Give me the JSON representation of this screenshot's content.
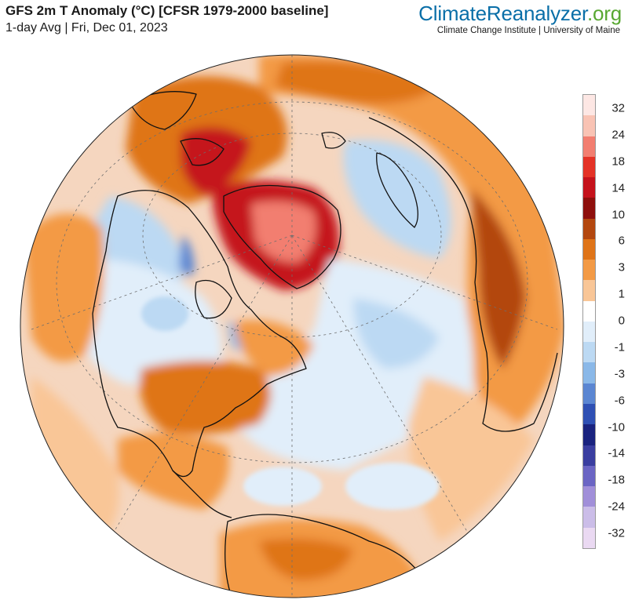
{
  "header": {
    "title": "GFS 2m T Anomaly (°C) [CFSR 1979-2000 baseline]",
    "subtitle": "1-day Avg | Fri, Dec 01, 2023"
  },
  "brand": {
    "name_main": "ClimateReanalyzer",
    "name_tld": ".org",
    "affiliation": "Climate Change Institute | University of Maine"
  },
  "legend": {
    "units": "°C",
    "ticks": [
      "32",
      "24",
      "18",
      "14",
      "10",
      "6",
      "3",
      "1",
      "0",
      "-1",
      "-3",
      "-6",
      "-10",
      "-14",
      "-18",
      "-24",
      "-32"
    ],
    "colors": [
      "#fde7e4",
      "#f9c3b4",
      "#f27e70",
      "#e43226",
      "#c5121b",
      "#8e0f0c",
      "#b3470f",
      "#df7418",
      "#f39a45",
      "#f9c697",
      "#ffffff",
      "#e1eefa",
      "#bcd9f3",
      "#8ab8e8",
      "#5b86d2",
      "#2f50b4",
      "#1a237f",
      "#3a3ea0",
      "#6b65c4",
      "#a18fd9",
      "#cbbde8",
      "#ead9f2"
    ]
  },
  "map": {
    "projection": "orthographic",
    "center": "North America / Arctic",
    "colors": {
      "ocean_base": "#f5d6bf",
      "warm_light": "#f9c697",
      "warm_mid": "#f39a45",
      "warm_strong": "#df7418",
      "warm_very": "#b3470f",
      "hot": "#c5121b",
      "hottest": "#f27e70",
      "cool_light": "#e1eefa",
      "cool_mid": "#bcd9f3",
      "cool_strong": "#8ab8e8",
      "cold": "#5b86d2",
      "coldest": "#2f50b4",
      "coastline": "#111111",
      "graticule": "#6e6e6e"
    }
  }
}
